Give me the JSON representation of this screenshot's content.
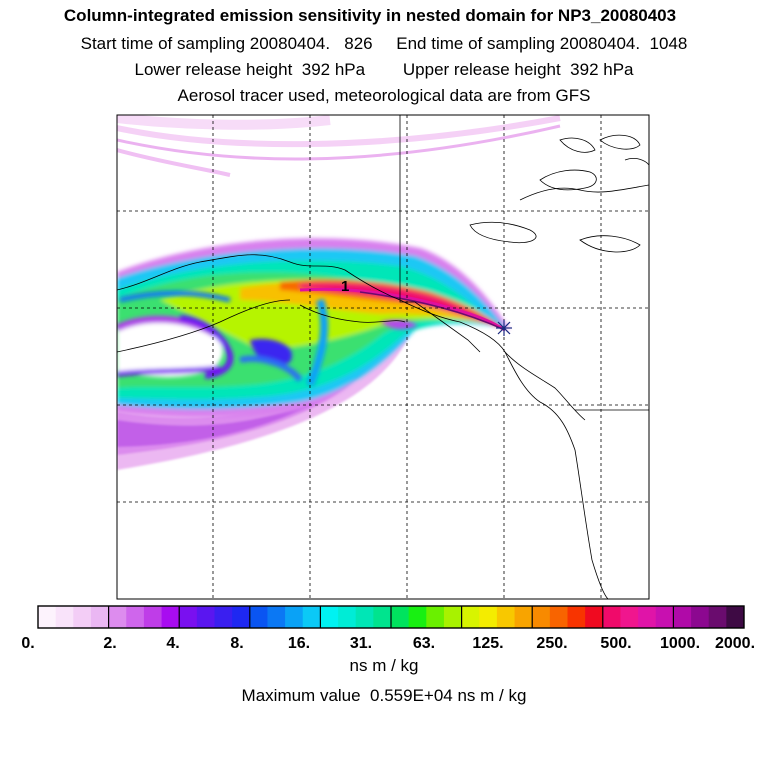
{
  "header": {
    "title": "Column-integrated emission sensitivity in nested domain for NP3_20080403",
    "start_label": "Start time of sampling 20080404.   826",
    "end_label": "End time of sampling 20080404.  1048",
    "lower_label": "Lower release height  392 hPa",
    "upper_label": "Upper release height  392 hPa",
    "tracer_line": "Aerosol tracer used, meteorological data are from GFS"
  },
  "map": {
    "marker_label": "1",
    "release_marker": "asterisk-icon"
  },
  "colorbar": {
    "tick_labels": [
      "0.",
      "2.",
      "4.",
      "8.",
      "16.",
      "31.",
      "63.",
      "125.",
      "250.",
      "500.",
      "1000.",
      "2000."
    ],
    "unit": "ns m / kg",
    "colors": [
      [
        "#fdf3fd",
        "#f9e3fa",
        "#f3cdf6",
        "#eab7f3"
      ],
      [
        "#dd8cee",
        "#cf66ec",
        "#bf3de8",
        "#a80cf0"
      ],
      [
        "#7a10f0",
        "#5a16f0",
        "#3a1ff0",
        "#1e28f2"
      ],
      [
        "#0a55f2",
        "#0b78f4",
        "#0aa2f6",
        "#0bc9f6"
      ],
      [
        "#00f2f2",
        "#00ecd6",
        "#00e6b6",
        "#00e48e"
      ],
      [
        "#00e35e",
        "#18f012",
        "#6af000",
        "#a8f200"
      ],
      [
        "#d8f400",
        "#f4ec00",
        "#f8c800",
        "#f8a400"
      ],
      [
        "#f88a00",
        "#f86400",
        "#f83400",
        "#f00a20"
      ],
      [
        "#f00a6a",
        "#f0168e",
        "#e014a8",
        "#c810b0"
      ],
      [
        "#b00aa8",
        "#8c0890",
        "#6a0c6e",
        "#3e0a44"
      ]
    ]
  },
  "max_value_label": "Maximum value  0.559E+04 ns m / kg"
}
